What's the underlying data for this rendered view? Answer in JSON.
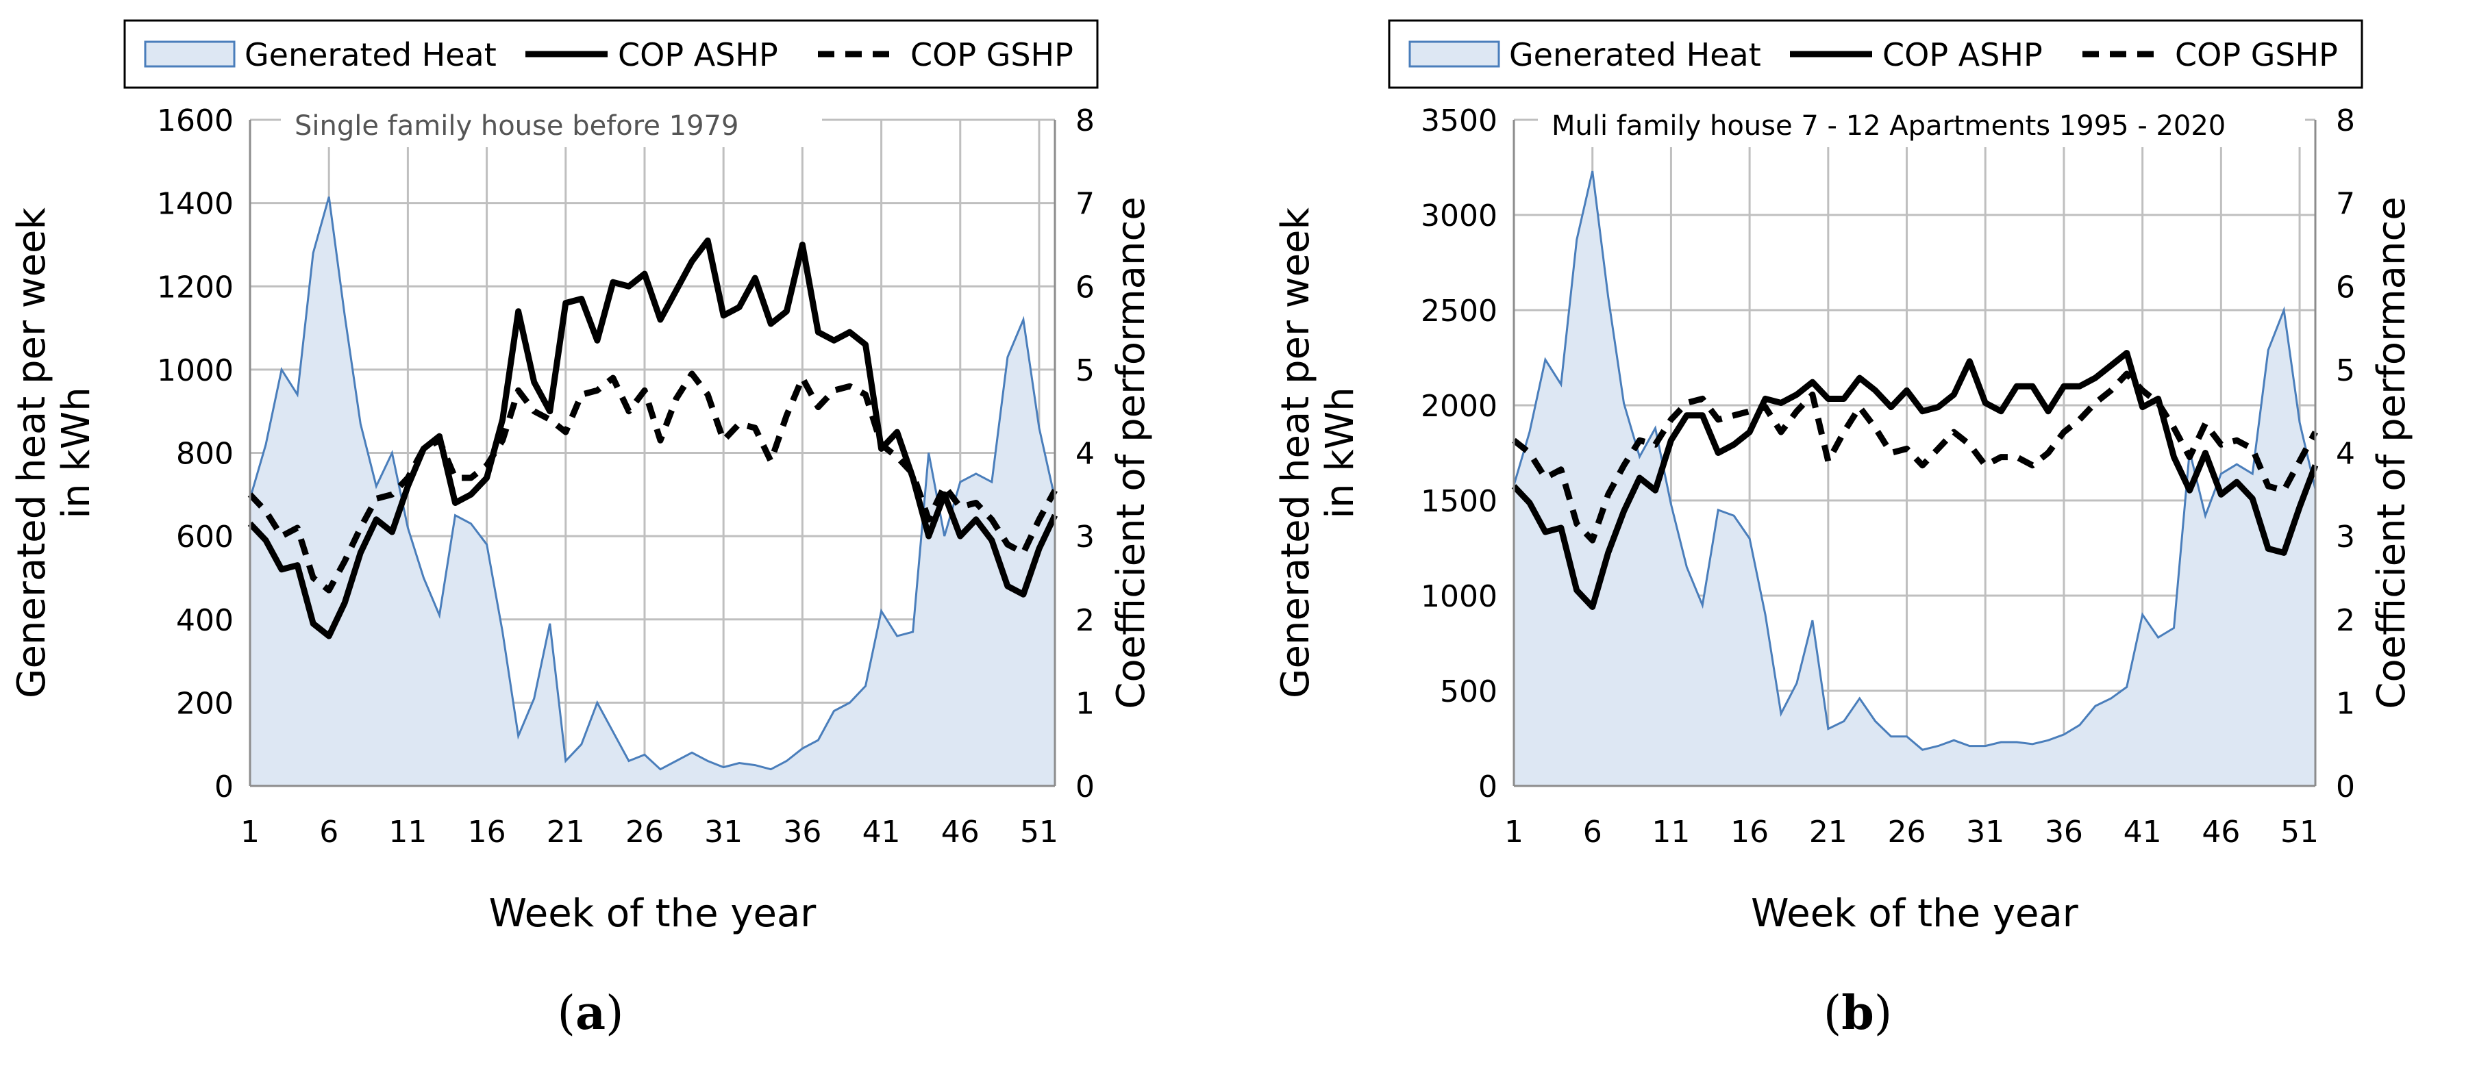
{
  "figure": {
    "panels": [
      {
        "label_open": "(",
        "label_letter": "a",
        "label_close": ")"
      },
      {
        "label_open": "(",
        "label_letter": "b",
        "label_close": ")"
      }
    ]
  },
  "colors": {
    "area_fill": "#dde7f3",
    "area_line": "#4a7ebb",
    "cop_line": "#000000",
    "grid": "#bfbfbf"
  },
  "chart_data": [
    {
      "type": "area",
      "title": "Single family house before 1979",
      "xlabel": "Week of the year",
      "ylabel": "Generated heat per week in kWh",
      "ylabel_lines": [
        "Generated heat per week",
        "in kWh"
      ],
      "y2label": "Coefficient of performance",
      "xlim": [
        1,
        52
      ],
      "ylim": [
        0,
        1600
      ],
      "y2lim": [
        0,
        8
      ],
      "xticks": [
        1,
        6,
        11,
        16,
        21,
        26,
        31,
        36,
        41,
        46,
        51
      ],
      "yticks": [
        0,
        200,
        400,
        600,
        800,
        1000,
        1200,
        1400,
        1600
      ],
      "y2ticks": [
        0,
        1,
        2,
        3,
        4,
        5,
        6,
        7,
        8
      ],
      "grid": true,
      "legend_position": "top",
      "legend": [
        "Generated Heat",
        "COP ASHP",
        "COP GSHP"
      ],
      "x": [
        1,
        2,
        3,
        4,
        5,
        6,
        7,
        8,
        9,
        10,
        11,
        12,
        13,
        14,
        15,
        16,
        17,
        18,
        19,
        20,
        21,
        22,
        23,
        24,
        25,
        26,
        27,
        28,
        29,
        30,
        31,
        32,
        33,
        34,
        35,
        36,
        37,
        38,
        39,
        40,
        41,
        42,
        43,
        44,
        45,
        46,
        47,
        48,
        49,
        50,
        51,
        52
      ],
      "series": [
        {
          "name": "Generated Heat",
          "axis": "left",
          "style": "area",
          "values": [
            690,
            820,
            1000,
            940,
            1280,
            1415,
            1130,
            870,
            720,
            800,
            620,
            500,
            410,
            650,
            630,
            580,
            370,
            120,
            210,
            390,
            60,
            100,
            200,
            130,
            60,
            75,
            40,
            60,
            80,
            60,
            45,
            55,
            50,
            40,
            60,
            90,
            110,
            180,
            200,
            240,
            420,
            360,
            370,
            800,
            600,
            730,
            750,
            730,
            1030,
            1120,
            860,
            690
          ]
        },
        {
          "name": "COP ASHP",
          "axis": "right",
          "style": "solid",
          "values": [
            3.15,
            2.95,
            2.6,
            2.65,
            1.95,
            1.8,
            2.2,
            2.8,
            3.2,
            3.05,
            3.6,
            4.05,
            4.2,
            3.4,
            3.5,
            3.7,
            4.4,
            5.7,
            4.85,
            4.5,
            5.8,
            5.85,
            5.35,
            6.05,
            6.0,
            6.15,
            5.6,
            5.95,
            6.3,
            6.55,
            5.65,
            5.75,
            6.1,
            5.55,
            5.7,
            6.5,
            5.45,
            5.35,
            5.45,
            5.3,
            4.05,
            4.25,
            3.7,
            3.0,
            3.5,
            3.0,
            3.2,
            2.95,
            2.4,
            2.3,
            2.85,
            3.25
          ]
        },
        {
          "name": "COP GSHP",
          "axis": "right",
          "style": "dashed",
          "values": [
            3.5,
            3.3,
            3.0,
            3.1,
            2.5,
            2.35,
            2.7,
            3.1,
            3.45,
            3.5,
            3.7,
            4.05,
            4.15,
            3.7,
            3.7,
            3.85,
            4.15,
            4.75,
            4.5,
            4.4,
            4.25,
            4.7,
            4.75,
            4.9,
            4.5,
            4.75,
            4.15,
            4.65,
            4.95,
            4.7,
            4.15,
            4.35,
            4.3,
            3.9,
            4.45,
            4.9,
            4.55,
            4.75,
            4.8,
            4.7,
            4.1,
            3.95,
            3.75,
            3.2,
            3.6,
            3.35,
            3.4,
            3.2,
            2.9,
            2.8,
            3.2,
            3.55
          ]
        }
      ]
    },
    {
      "type": "area",
      "title": "Muli family house 7 - 12 Apartments 1995  - 2020",
      "xlabel": "Week of the year",
      "ylabel": "Generated heat per week in kWh",
      "ylabel_lines": [
        "Generated heat per week",
        "in kWh"
      ],
      "y2label": "Coefficient of performance",
      "xlim": [
        1,
        52
      ],
      "ylim": [
        0,
        3500
      ],
      "y2lim": [
        0,
        8
      ],
      "xticks": [
        1,
        6,
        11,
        16,
        21,
        26,
        31,
        36,
        41,
        46,
        51
      ],
      "yticks": [
        0,
        500,
        1000,
        1500,
        2000,
        2500,
        3000,
        3500
      ],
      "y2ticks": [
        0,
        1,
        2,
        3,
        4,
        5,
        6,
        7,
        8
      ],
      "grid": true,
      "legend_position": "top",
      "legend": [
        "Generated Heat",
        "COP ASHP",
        "COP GSHP"
      ],
      "x": [
        1,
        2,
        3,
        4,
        5,
        6,
        7,
        8,
        9,
        10,
        11,
        12,
        13,
        14,
        15,
        16,
        17,
        18,
        19,
        20,
        21,
        22,
        23,
        24,
        25,
        26,
        27,
        28,
        29,
        30,
        31,
        32,
        33,
        34,
        35,
        36,
        37,
        38,
        39,
        40,
        41,
        42,
        43,
        44,
        45,
        46,
        47,
        48,
        49,
        50,
        51,
        52
      ],
      "series": [
        {
          "name": "Generated Heat",
          "axis": "left",
          "style": "area",
          "values": [
            1580,
            1860,
            2240,
            2110,
            2870,
            3230,
            2570,
            2010,
            1730,
            1880,
            1480,
            1150,
            950,
            1450,
            1420,
            1300,
            900,
            380,
            540,
            870,
            300,
            340,
            460,
            340,
            260,
            260,
            190,
            210,
            240,
            210,
            210,
            230,
            230,
            220,
            240,
            270,
            320,
            420,
            460,
            520,
            900,
            780,
            830,
            1760,
            1420,
            1640,
            1690,
            1640,
            2290,
            2500,
            1910,
            1560
          ]
        },
        {
          "name": "COP ASHP",
          "axis": "right",
          "style": "solid",
          "values": [
            3.6,
            3.4,
            3.05,
            3.1,
            2.35,
            2.15,
            2.8,
            3.3,
            3.7,
            3.55,
            4.15,
            4.45,
            4.45,
            4.0,
            4.1,
            4.25,
            4.65,
            4.6,
            4.7,
            4.85,
            4.65,
            4.65,
            4.9,
            4.75,
            4.55,
            4.75,
            4.5,
            4.55,
            4.7,
            5.1,
            4.6,
            4.5,
            4.8,
            4.8,
            4.5,
            4.8,
            4.8,
            4.9,
            5.05,
            5.2,
            4.55,
            4.65,
            3.95,
            3.55,
            4.0,
            3.5,
            3.65,
            3.45,
            2.85,
            2.8,
            3.35,
            3.85
          ]
        },
        {
          "name": "COP GSHP",
          "axis": "right",
          "style": "dashed",
          "values": [
            4.15,
            4.0,
            3.7,
            3.8,
            3.15,
            2.95,
            3.5,
            3.85,
            4.15,
            4.1,
            4.4,
            4.6,
            4.65,
            4.4,
            4.45,
            4.5,
            4.55,
            4.25,
            4.5,
            4.7,
            3.9,
            4.25,
            4.55,
            4.3,
            4.0,
            4.05,
            3.85,
            4.05,
            4.25,
            4.1,
            3.85,
            3.95,
            3.95,
            3.85,
            4.0,
            4.25,
            4.4,
            4.6,
            4.75,
            4.95,
            4.75,
            4.6,
            4.3,
            3.95,
            4.35,
            4.1,
            4.15,
            4.05,
            3.6,
            3.55,
            3.9,
            4.25
          ]
        }
      ]
    }
  ]
}
